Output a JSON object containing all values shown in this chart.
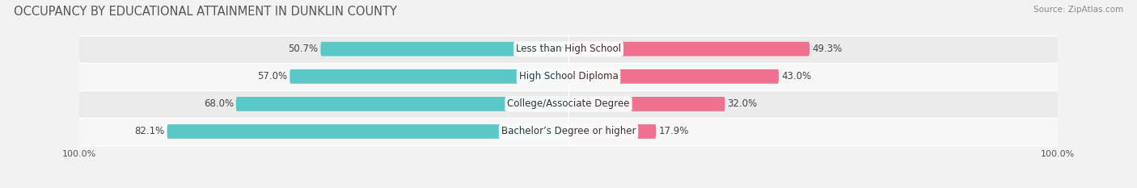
{
  "title": "OCCUPANCY BY EDUCATIONAL ATTAINMENT IN DUNKLIN COUNTY",
  "source": "Source: ZipAtlas.com",
  "categories": [
    "Less than High School",
    "High School Diploma",
    "College/Associate Degree",
    "Bachelor’s Degree or higher"
  ],
  "owner_values": [
    50.7,
    57.0,
    68.0,
    82.1
  ],
  "renter_values": [
    49.3,
    43.0,
    32.0,
    17.9
  ],
  "owner_color": "#5bc8c8",
  "renter_color": "#f07090",
  "background_color": "#f2f2f2",
  "row_colors": [
    "#ebebeb",
    "#f7f7f7",
    "#ebebeb",
    "#f7f7f7"
  ],
  "title_fontsize": 10.5,
  "label_fontsize": 8.5,
  "tick_fontsize": 8,
  "source_fontsize": 7.5,
  "value_fontsize": 8.5
}
